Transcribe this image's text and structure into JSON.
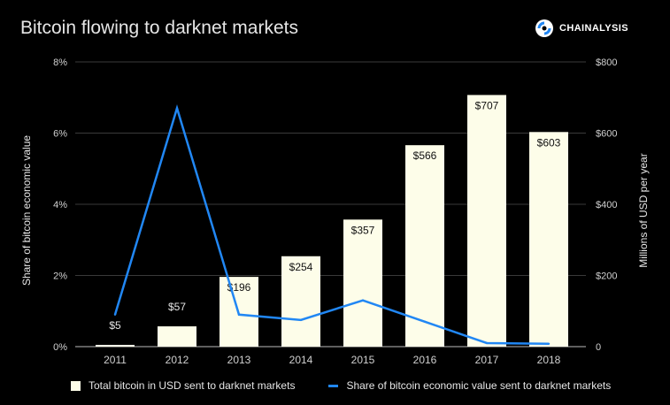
{
  "header": {
    "title": "Bitcoin flowing to darknet markets",
    "brand": "CHAINALYSIS",
    "brand_icon": "chainalysis-logo-icon"
  },
  "colors": {
    "bar": "#fdfde9",
    "line": "#2187f4",
    "background": "#000000",
    "grid": "#3a3a3a"
  },
  "chart_data": {
    "type": "bar",
    "categories": [
      "2011",
      "2012",
      "2013",
      "2014",
      "2015",
      "2016",
      "2017",
      "2018"
    ],
    "series": [
      {
        "name": "Total bitcoin in USD sent to darknet markets",
        "type": "bar",
        "axis": "right",
        "values": [
          5,
          57,
          196,
          254,
          357,
          566,
          707,
          603
        ],
        "labels": [
          "$5",
          "$57",
          "$196",
          "$254",
          "$357",
          "$566",
          "$707",
          "$603"
        ]
      },
      {
        "name": "Share of bitcoin economic value sent to darknet markets",
        "type": "line",
        "axis": "left",
        "values": [
          0.9,
          6.7,
          0.9,
          0.75,
          1.3,
          0.7,
          0.1,
          0.08
        ]
      }
    ],
    "y_left": {
      "label": "Share of bitcoin economic value",
      "range": [
        0,
        8
      ],
      "ticks": [
        "0%",
        "2%",
        "4%",
        "6%",
        "8%"
      ]
    },
    "y_right": {
      "label": "Millions of USD per year",
      "range": [
        0,
        800
      ],
      "ticks": [
        "0",
        "$200",
        "$400",
        "$600",
        "$800"
      ]
    },
    "grid": true,
    "legend_position": "bottom"
  }
}
